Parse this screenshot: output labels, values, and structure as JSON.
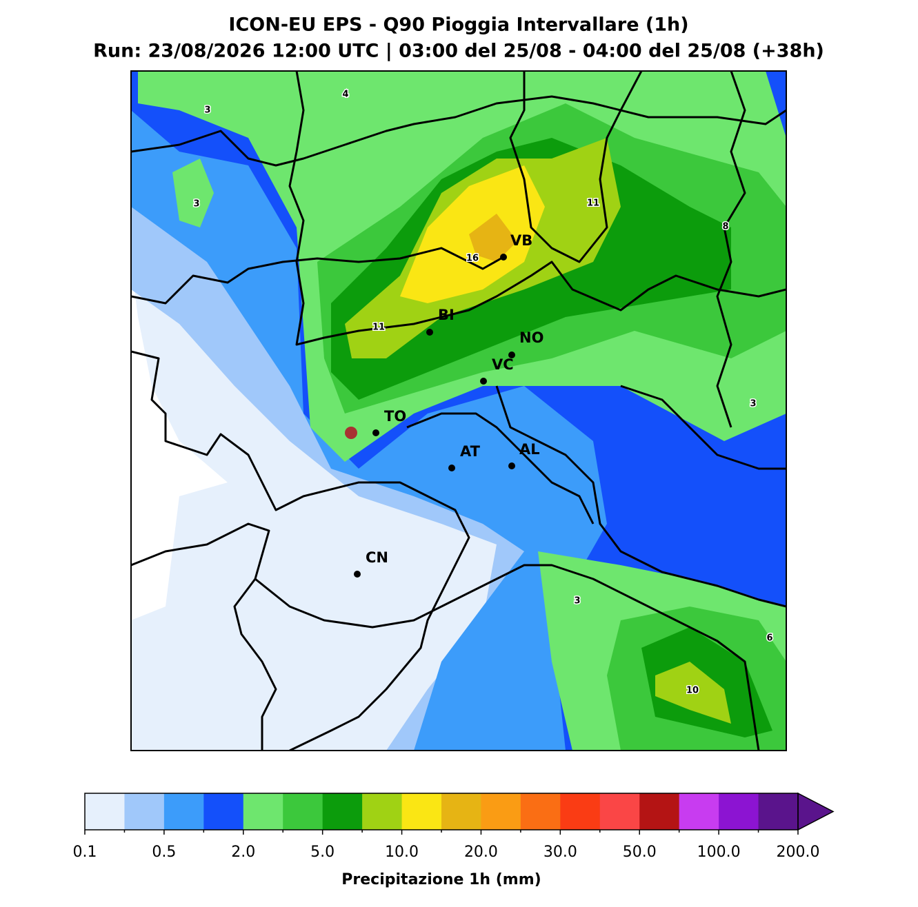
{
  "header": {
    "title": "ICON-EU EPS - Q90 Pioggia Intervallare (1h)",
    "subtitle": "Run: 23/08/2026 12:00 UTC | 03:00 del 25/08 - 04:00 del 25/08 (+38h)"
  },
  "cities": [
    "VB",
    "BI",
    "NO",
    "VC",
    "TO",
    "AT",
    "AL",
    "CN"
  ],
  "contour_labels": [
    3,
    4,
    3,
    11,
    8,
    16,
    11,
    3,
    3,
    6,
    10
  ],
  "colorbar": {
    "label": "Precipitazione 1h (mm)",
    "colors": [
      "#e6f0fc",
      "#a0c8fa",
      "#3c9cfa",
      "#1450fa",
      "#6ee66e",
      "#3cc83c",
      "#0c9c0c",
      "#a0d214",
      "#fae614",
      "#e6b414",
      "#fa9c14",
      "#fa6e14",
      "#fa3c14",
      "#fa4646",
      "#b41414",
      "#c83cf0",
      "#8c14d2",
      "#5a148c"
    ],
    "ticks": [
      "0.1",
      "0.5",
      "2.0",
      "5.0",
      "10.0",
      "20.0",
      "30.0",
      "50.0",
      "100.0",
      "200.0"
    ]
  }
}
